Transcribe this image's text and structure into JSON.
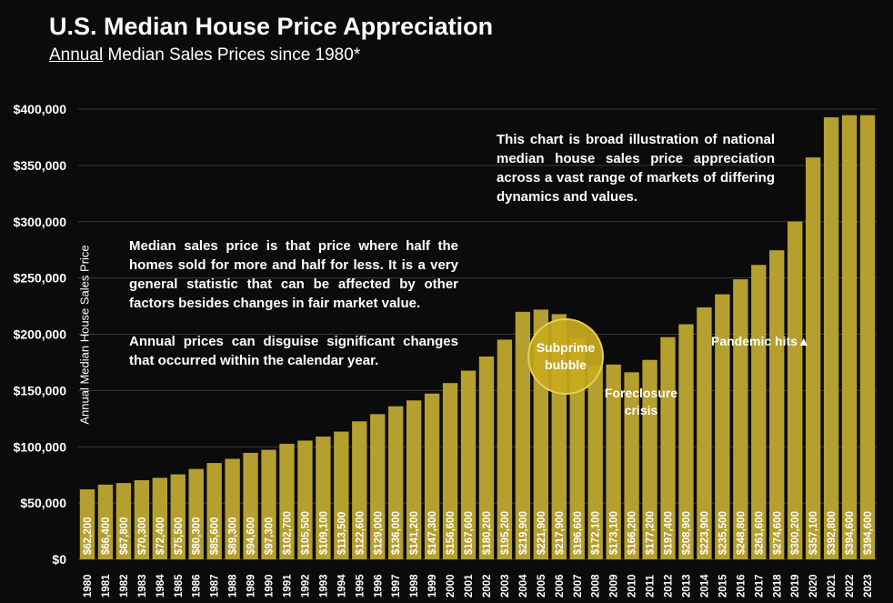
{
  "header": {
    "title": "U.S. Median House Price Appreciation",
    "subtitle_underlined": "Annual",
    "subtitle_rest": " Median Sales Prices since 1980*"
  },
  "notes": {
    "left_p1": "Median sales price is that price where half the homes sold for more and half for less. It is a very general statistic that can be affected by other factors besides changes in fair market value.",
    "left_p2": "Annual prices can disguise significant changes that occurred within the calendar year.",
    "right": "This chart is broad illustration of national median house sales price appreciation across a vast range of markets of differing dynamics and values."
  },
  "annotations": {
    "bubble_line1": "Subprime",
    "bubble_line2": "bubble",
    "foreclosure_line1": "Foreclosure",
    "foreclosure_line2": "crisis",
    "pandemic": "Pandemic hits▲"
  },
  "colors": {
    "background": "#0b0b0b",
    "bar": "#b59f2e",
    "grid": "#3a3a3a",
    "text": "#ffffff"
  },
  "chart_data": {
    "type": "bar",
    "title": "U.S. Median House Price Appreciation",
    "subtitle": "Annual Median Sales Prices since 1980*",
    "xlabel": "",
    "ylabel": "Annual Median House Sales Price",
    "ylim": [
      0,
      400000
    ],
    "yticks": [
      0,
      50000,
      100000,
      150000,
      200000,
      250000,
      300000,
      350000,
      400000
    ],
    "ytick_labels": [
      "$0",
      "$50,000",
      "$100,000",
      "$150,000",
      "$200,000",
      "$250,000",
      "$300,000",
      "$350,000",
      "$400,000"
    ],
    "grid": true,
    "categories": [
      "1980",
      "1981",
      "1982",
      "1983",
      "1984",
      "1985",
      "1986",
      "1987",
      "1988",
      "1989",
      "1990",
      "1991",
      "1992",
      "1993",
      "1994",
      "1995",
      "1996",
      "1997",
      "1998",
      "1999",
      "2000",
      "2001",
      "2002",
      "2003",
      "2004",
      "2005",
      "2006",
      "2007",
      "2008",
      "2009",
      "2010",
      "2011",
      "2012",
      "2013",
      "2014",
      "2015",
      "2016",
      "2017",
      "2018",
      "2019",
      "2020",
      "2021",
      "2022",
      "2023"
    ],
    "values": [
      62200,
      66400,
      67800,
      70300,
      72400,
      75500,
      80300,
      85600,
      89300,
      94600,
      97300,
      102700,
      105500,
      109100,
      113500,
      122600,
      129000,
      136000,
      141200,
      147300,
      156600,
      167600,
      180200,
      195200,
      219900,
      221900,
      217900,
      196600,
      172100,
      173100,
      166200,
      177200,
      197400,
      208900,
      223900,
      235500,
      248800,
      261600,
      274600,
      300200,
      357100,
      392800,
      394600,
      394600
    ],
    "data_labels": [
      "$62,200",
      "$66,400",
      "$67,800",
      "$70,300",
      "$72,400",
      "$75,500",
      "$80,300",
      "$85,600",
      "$89,300",
      "$94,600",
      "$97,300",
      "$102,700",
      "$105,500",
      "$109,100",
      "$113,500",
      "$122,600",
      "$129,000",
      "$136,000",
      "$141,200",
      "$147,300",
      "$156,600",
      "$167,600",
      "$180,200",
      "$195,200",
      "$219,900",
      "$221,900",
      "$217,900",
      "$196,600",
      "$172,100",
      "$173,100",
      "$166,200",
      "$177,200",
      "$197,400",
      "$208,900",
      "$223,900",
      "$235,500",
      "$248,800",
      "$261,600",
      "$274,600",
      "$300,200",
      "$357,100",
      "$392,800",
      "$394,600",
      "$394,600"
    ]
  }
}
